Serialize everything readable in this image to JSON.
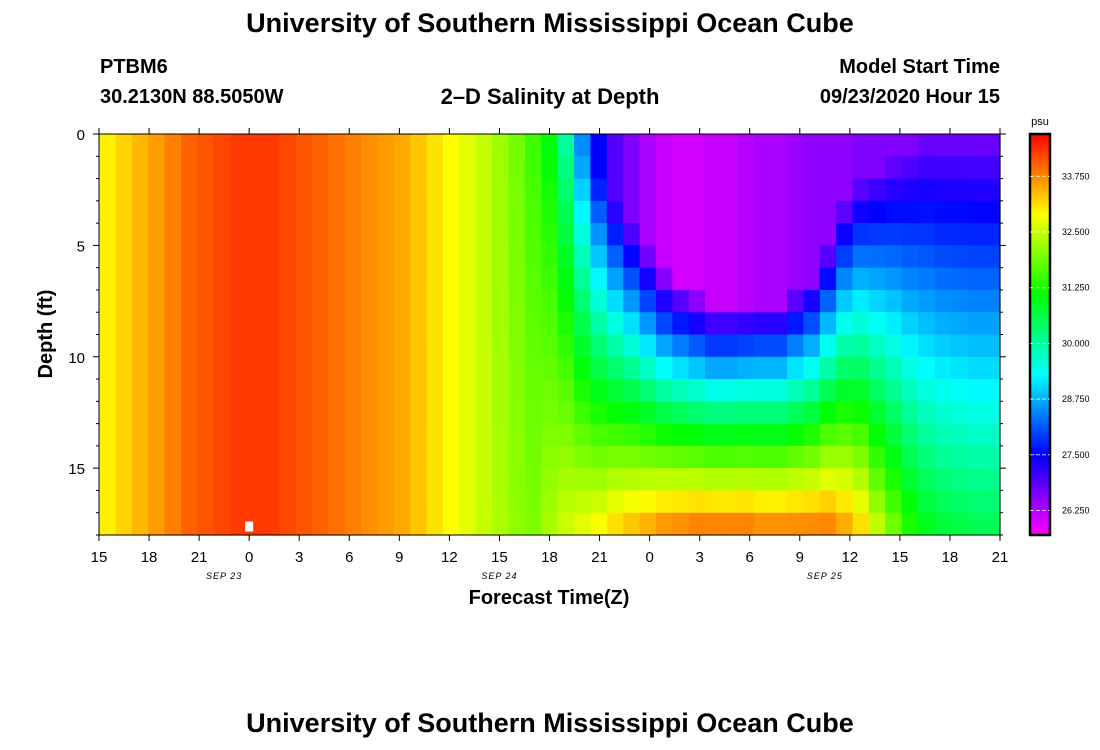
{
  "page": {
    "title_top": "University of Southern Mississippi Ocean Cube",
    "title_bottom": "University of Southern Mississippi Ocean Cube",
    "station_id": "PTBM6",
    "station_coords": "30.2130N 88.5050W",
    "plot_title": "2–D Salinity at Depth",
    "model_start_label": "Model Start Time",
    "model_start_value": "09/23/2020 Hour 15"
  },
  "chart_data": {
    "type": "heatmap",
    "title": "2–D Salinity at Depth",
    "xlabel": "Forecast Time(Z)",
    "ylabel": "Depth (ft)",
    "x_hours_from_start": [
      0,
      54
    ],
    "x_tick_labels": [
      "15",
      "18",
      "21",
      "0",
      "3",
      "6",
      "9",
      "12",
      "15",
      "18",
      "21",
      "0",
      "3",
      "6",
      "9",
      "12",
      "15",
      "18",
      "21"
    ],
    "date_labels": [
      {
        "text": "SEP 23",
        "tick_index": 2.5
      },
      {
        "text": "SEP 24",
        "tick_index": 8
      },
      {
        "text": "SEP 25",
        "tick_index": 14.5
      }
    ],
    "y_ticks": [
      0,
      5,
      10,
      15
    ],
    "ylim": [
      0,
      18
    ],
    "colorbar": {
      "unit": "psu",
      "range": [
        25.7,
        34.7
      ],
      "ticks": [
        "33.750",
        "32.500",
        "31.250",
        "30.000",
        "28.750",
        "27.500",
        "26.250"
      ],
      "tick_values": [
        33.75,
        32.5,
        31.25,
        30.0,
        28.75,
        27.5,
        26.25
      ]
    },
    "grid": {
      "time_steps": 55,
      "depth_levels": 18
    },
    "surface_salinity_psu": [
      33.0,
      33.2,
      33.4,
      33.6,
      33.8,
      34.0,
      34.1,
      34.2,
      34.3,
      34.3,
      34.3,
      34.2,
      34.1,
      34.0,
      33.9,
      33.8,
      33.7,
      33.6,
      33.5,
      33.3,
      33.1,
      32.9,
      32.7,
      32.5,
      32.2,
      31.9,
      31.5,
      31.0,
      30.0,
      28.5,
      27.5,
      26.9,
      26.6,
      26.3,
      26.1,
      26.0,
      26.0,
      26.1,
      26.1,
      26.2,
      26.3,
      26.3,
      26.4,
      26.5,
      26.5,
      26.5,
      26.6,
      26.6,
      26.6,
      26.6,
      26.6,
      26.6,
      26.6,
      26.6,
      26.6
    ],
    "bottom_salinity_psu": [
      33.0,
      33.2,
      33.4,
      33.6,
      33.8,
      34.0,
      34.1,
      34.2,
      34.3,
      34.3,
      34.3,
      34.2,
      34.1,
      34.0,
      33.9,
      33.8,
      33.7,
      33.6,
      33.5,
      33.3,
      33.1,
      32.9,
      32.7,
      32.5,
      32.3,
      32.1,
      32.0,
      32.3,
      32.6,
      32.8,
      33.0,
      33.3,
      33.5,
      33.7,
      33.9,
      34.0,
      34.1,
      34.1,
      34.1,
      34.1,
      34.0,
      34.0,
      34.0,
      34.0,
      34.0,
      33.7,
      33.3,
      32.6,
      32.0,
      31.4,
      31.0,
      30.8,
      30.7,
      30.6,
      30.6
    ],
    "mixing_break_depth_ft": [
      0,
      0,
      0,
      0,
      0,
      0,
      0,
      0,
      0,
      0,
      0,
      0,
      0,
      0,
      0,
      0,
      0,
      0,
      0,
      0,
      0,
      0,
      0,
      0,
      0,
      0,
      0,
      0,
      0.5,
      1,
      2,
      3,
      4,
      5,
      6,
      6.5,
      7,
      7.5,
      7.5,
      7.5,
      7.5,
      7.5,
      7,
      6.5,
      5,
      3,
      2,
      1.5,
      1,
      0.5,
      0,
      0,
      0,
      0,
      0
    ],
    "annotations": [
      {
        "text": "marker",
        "x_hour": 9,
        "depth_ft": 17.8
      }
    ]
  }
}
